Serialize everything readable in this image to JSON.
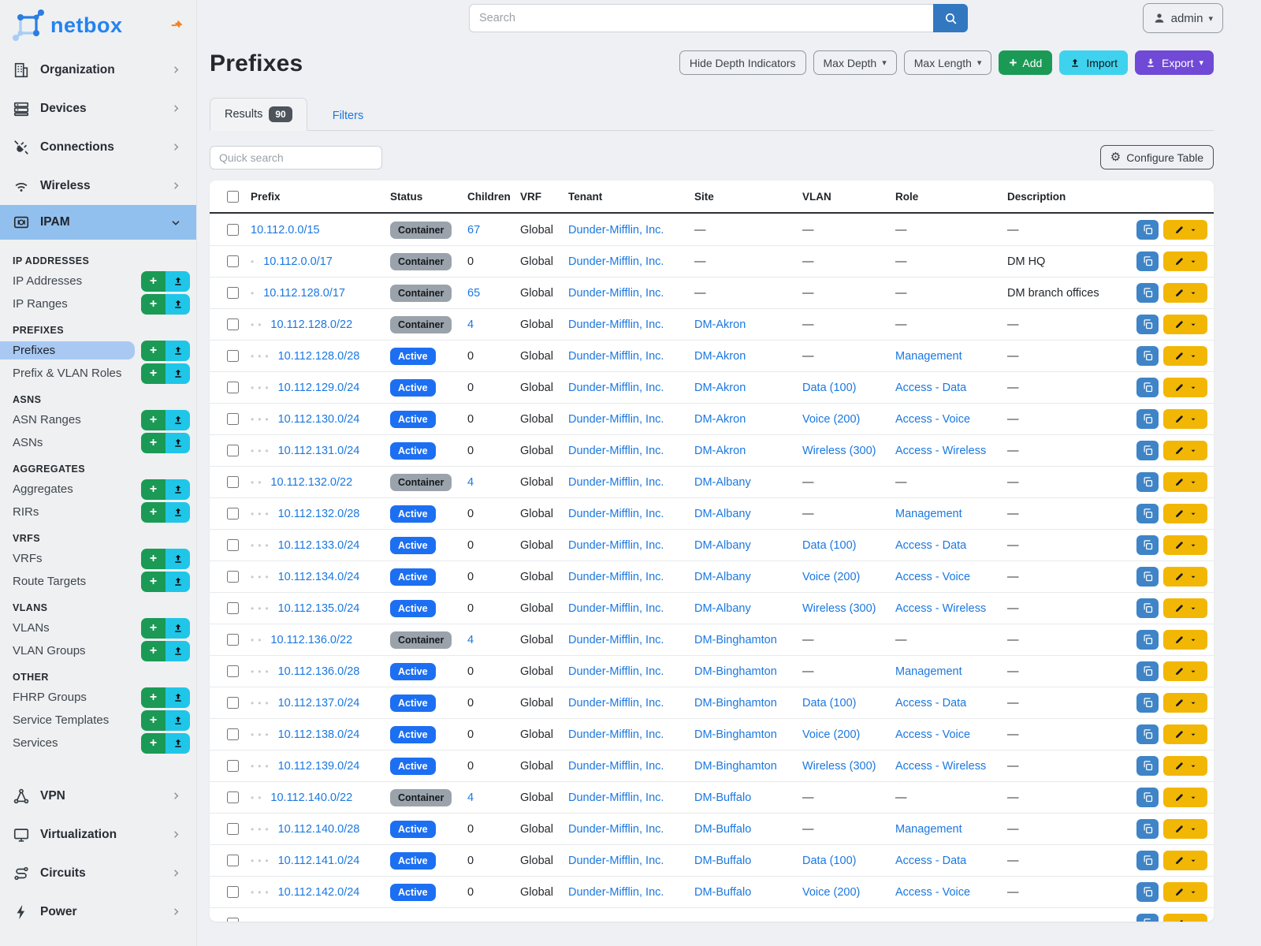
{
  "brand": {
    "name": "netbox"
  },
  "topbar": {
    "search_placeholder": "Search",
    "user": "admin"
  },
  "colors": {
    "link_blue": "#1b78e0",
    "badge_active_blue": "#1d6ff2",
    "badge_container_gray": "#9aa3ab",
    "add_green": "#1b9a55",
    "import_cyan": "#3fd2ee",
    "export_purple": "#7049d6",
    "edit_yellow": "#f2b705",
    "copy_blue": "#3f84c6"
  },
  "sidebar": {
    "items_before": [
      {
        "label": "Organization",
        "icon": "building-icon"
      },
      {
        "label": "Devices",
        "icon": "server-icon"
      },
      {
        "label": "Connections",
        "icon": "plug-icon"
      },
      {
        "label": "Wireless",
        "icon": "wifi-icon"
      }
    ],
    "active_group": {
      "label": "IPAM",
      "icon": "ipam-icon"
    },
    "sections": [
      {
        "title": "IP ADDRESSES",
        "items": [
          {
            "label": "IP Addresses"
          },
          {
            "label": "IP Ranges"
          }
        ]
      },
      {
        "title": "PREFIXES",
        "items": [
          {
            "label": "Prefixes",
            "active": true
          },
          {
            "label": "Prefix & VLAN Roles"
          }
        ]
      },
      {
        "title": "ASNS",
        "items": [
          {
            "label": "ASN Ranges"
          },
          {
            "label": "ASNs"
          }
        ]
      },
      {
        "title": "AGGREGATES",
        "items": [
          {
            "label": "Aggregates"
          },
          {
            "label": "RIRs"
          }
        ]
      },
      {
        "title": "VRFS",
        "items": [
          {
            "label": "VRFs"
          },
          {
            "label": "Route Targets"
          }
        ]
      },
      {
        "title": "VLANS",
        "items": [
          {
            "label": "VLANs"
          },
          {
            "label": "VLAN Groups"
          }
        ]
      },
      {
        "title": "OTHER",
        "items": [
          {
            "label": "FHRP Groups"
          },
          {
            "label": "Service Templates"
          },
          {
            "label": "Services"
          }
        ]
      }
    ],
    "items_after": [
      {
        "label": "VPN",
        "icon": "vpn-icon"
      },
      {
        "label": "Virtualization",
        "icon": "monitor-icon"
      },
      {
        "label": "Circuits",
        "icon": "circuits-icon"
      },
      {
        "label": "Power",
        "icon": "power-icon"
      }
    ]
  },
  "page": {
    "title": "Prefixes",
    "toolbar": {
      "hide_depth": "Hide Depth Indicators",
      "max_depth": "Max Depth",
      "max_length": "Max Length",
      "add": "Add",
      "import": "Import",
      "export": "Export"
    },
    "tabs": {
      "results": "Results",
      "results_count": "90",
      "filters": "Filters"
    },
    "quick_search_placeholder": "Quick search",
    "configure_table": "Configure Table"
  },
  "table": {
    "columns": [
      "Prefix",
      "Status",
      "Children",
      "VRF",
      "Tenant",
      "Site",
      "VLAN",
      "Role",
      "Description"
    ],
    "rows": [
      {
        "prefix": "10.112.0.0/15",
        "depth": 0,
        "status": "Container",
        "children": "67",
        "children_link": true,
        "vrf": "Global",
        "tenant": "Dunder-Mifflin, Inc.",
        "site": "",
        "vlan": "",
        "role": "",
        "desc": ""
      },
      {
        "prefix": "10.112.0.0/17",
        "depth": 1,
        "status": "Container",
        "children": "0",
        "children_link": false,
        "vrf": "Global",
        "tenant": "Dunder-Mifflin, Inc.",
        "site": "",
        "vlan": "",
        "role": "",
        "desc": "DM HQ"
      },
      {
        "prefix": "10.112.128.0/17",
        "depth": 1,
        "status": "Container",
        "children": "65",
        "children_link": true,
        "vrf": "Global",
        "tenant": "Dunder-Mifflin, Inc.",
        "site": "",
        "vlan": "",
        "role": "",
        "desc": "DM branch offices"
      },
      {
        "prefix": "10.112.128.0/22",
        "depth": 2,
        "status": "Container",
        "children": "4",
        "children_link": true,
        "vrf": "Global",
        "tenant": "Dunder-Mifflin, Inc.",
        "site": "DM-Akron",
        "vlan": "",
        "role": "",
        "desc": ""
      },
      {
        "prefix": "10.112.128.0/28",
        "depth": 3,
        "status": "Active",
        "children": "0",
        "children_link": false,
        "vrf": "Global",
        "tenant": "Dunder-Mifflin, Inc.",
        "site": "DM-Akron",
        "vlan": "",
        "role": "Management",
        "desc": ""
      },
      {
        "prefix": "10.112.129.0/24",
        "depth": 3,
        "status": "Active",
        "children": "0",
        "children_link": false,
        "vrf": "Global",
        "tenant": "Dunder-Mifflin, Inc.",
        "site": "DM-Akron",
        "vlan": "Data (100)",
        "role": "Access - Data",
        "desc": ""
      },
      {
        "prefix": "10.112.130.0/24",
        "depth": 3,
        "status": "Active",
        "children": "0",
        "children_link": false,
        "vrf": "Global",
        "tenant": "Dunder-Mifflin, Inc.",
        "site": "DM-Akron",
        "vlan": "Voice (200)",
        "role": "Access - Voice",
        "desc": ""
      },
      {
        "prefix": "10.112.131.0/24",
        "depth": 3,
        "status": "Active",
        "children": "0",
        "children_link": false,
        "vrf": "Global",
        "tenant": "Dunder-Mifflin, Inc.",
        "site": "DM-Akron",
        "vlan": "Wireless (300)",
        "role": "Access - Wireless",
        "desc": ""
      },
      {
        "prefix": "10.112.132.0/22",
        "depth": 2,
        "status": "Container",
        "children": "4",
        "children_link": true,
        "vrf": "Global",
        "tenant": "Dunder-Mifflin, Inc.",
        "site": "DM-Albany",
        "vlan": "",
        "role": "",
        "desc": ""
      },
      {
        "prefix": "10.112.132.0/28",
        "depth": 3,
        "status": "Active",
        "children": "0",
        "children_link": false,
        "vrf": "Global",
        "tenant": "Dunder-Mifflin, Inc.",
        "site": "DM-Albany",
        "vlan": "",
        "role": "Management",
        "desc": ""
      },
      {
        "prefix": "10.112.133.0/24",
        "depth": 3,
        "status": "Active",
        "children": "0",
        "children_link": false,
        "vrf": "Global",
        "tenant": "Dunder-Mifflin, Inc.",
        "site": "DM-Albany",
        "vlan": "Data (100)",
        "role": "Access - Data",
        "desc": ""
      },
      {
        "prefix": "10.112.134.0/24",
        "depth": 3,
        "status": "Active",
        "children": "0",
        "children_link": false,
        "vrf": "Global",
        "tenant": "Dunder-Mifflin, Inc.",
        "site": "DM-Albany",
        "vlan": "Voice (200)",
        "role": "Access - Voice",
        "desc": ""
      },
      {
        "prefix": "10.112.135.0/24",
        "depth": 3,
        "status": "Active",
        "children": "0",
        "children_link": false,
        "vrf": "Global",
        "tenant": "Dunder-Mifflin, Inc.",
        "site": "DM-Albany",
        "vlan": "Wireless (300)",
        "role": "Access - Wireless",
        "desc": ""
      },
      {
        "prefix": "10.112.136.0/22",
        "depth": 2,
        "status": "Container",
        "children": "4",
        "children_link": true,
        "vrf": "Global",
        "tenant": "Dunder-Mifflin, Inc.",
        "site": "DM-Binghamton",
        "vlan": "",
        "role": "",
        "desc": ""
      },
      {
        "prefix": "10.112.136.0/28",
        "depth": 3,
        "status": "Active",
        "children": "0",
        "children_link": false,
        "vrf": "Global",
        "tenant": "Dunder-Mifflin, Inc.",
        "site": "DM-Binghamton",
        "vlan": "",
        "role": "Management",
        "desc": ""
      },
      {
        "prefix": "10.112.137.0/24",
        "depth": 3,
        "status": "Active",
        "children": "0",
        "children_link": false,
        "vrf": "Global",
        "tenant": "Dunder-Mifflin, Inc.",
        "site": "DM-Binghamton",
        "vlan": "Data (100)",
        "role": "Access - Data",
        "desc": ""
      },
      {
        "prefix": "10.112.138.0/24",
        "depth": 3,
        "status": "Active",
        "children": "0",
        "children_link": false,
        "vrf": "Global",
        "tenant": "Dunder-Mifflin, Inc.",
        "site": "DM-Binghamton",
        "vlan": "Voice (200)",
        "role": "Access - Voice",
        "desc": ""
      },
      {
        "prefix": "10.112.139.0/24",
        "depth": 3,
        "status": "Active",
        "children": "0",
        "children_link": false,
        "vrf": "Global",
        "tenant": "Dunder-Mifflin, Inc.",
        "site": "DM-Binghamton",
        "vlan": "Wireless (300)",
        "role": "Access - Wireless",
        "desc": ""
      },
      {
        "prefix": "10.112.140.0/22",
        "depth": 2,
        "status": "Container",
        "children": "4",
        "children_link": true,
        "vrf": "Global",
        "tenant": "Dunder-Mifflin, Inc.",
        "site": "DM-Buffalo",
        "vlan": "",
        "role": "",
        "desc": ""
      },
      {
        "prefix": "10.112.140.0/28",
        "depth": 3,
        "status": "Active",
        "children": "0",
        "children_link": false,
        "vrf": "Global",
        "tenant": "Dunder-Mifflin, Inc.",
        "site": "DM-Buffalo",
        "vlan": "",
        "role": "Management",
        "desc": ""
      },
      {
        "prefix": "10.112.141.0/24",
        "depth": 3,
        "status": "Active",
        "children": "0",
        "children_link": false,
        "vrf": "Global",
        "tenant": "Dunder-Mifflin, Inc.",
        "site": "DM-Buffalo",
        "vlan": "Data (100)",
        "role": "Access - Data",
        "desc": ""
      },
      {
        "prefix": "10.112.142.0/24",
        "depth": 3,
        "status": "Active",
        "children": "0",
        "children_link": false,
        "vrf": "Global",
        "tenant": "Dunder-Mifflin, Inc.",
        "site": "DM-Buffalo",
        "vlan": "Voice (200)",
        "role": "Access - Voice",
        "desc": ""
      },
      {
        "prefix": "",
        "depth": 0,
        "status": "",
        "children": "",
        "children_link": false,
        "vrf": "",
        "tenant": "",
        "site": "",
        "vlan": "",
        "role": "",
        "desc": "",
        "partial": true
      }
    ]
  }
}
